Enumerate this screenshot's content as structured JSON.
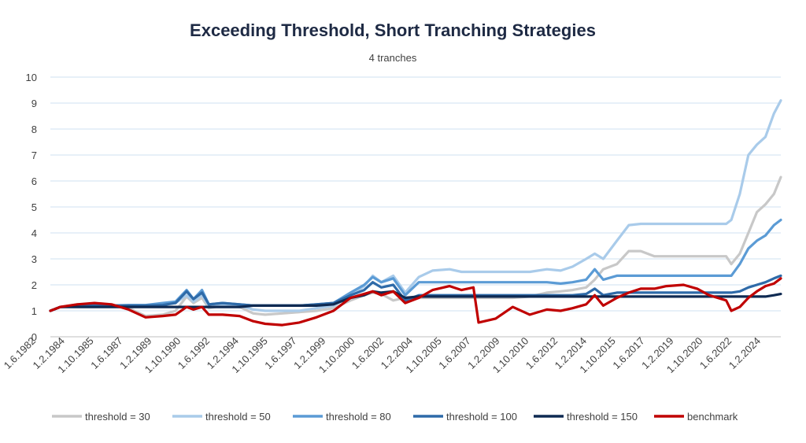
{
  "chart_data": {
    "type": "line",
    "title": "Exceeding Threshold, Short Tranching Strategies",
    "subtitle": "4 tranches",
    "xlabel": "",
    "ylabel": "",
    "ylim": [
      0,
      10
    ],
    "yticks": [
      "0",
      "1",
      "2",
      "3",
      "4",
      "5",
      "6",
      "7",
      "8",
      "9",
      "10"
    ],
    "grid": true,
    "legend_position": "bottom",
    "xtick_labels": [
      "1.6.1982",
      "1.2.1984",
      "1.10.1985",
      "1.6.1987",
      "1.2.1989",
      "1.10.1990",
      "1.6.1992",
      "1.2.1994",
      "1.10.1995",
      "1.6.1997",
      "1.2.1999",
      "1.10.2000",
      "1.6.2002",
      "1.2.2004",
      "1.10.2005",
      "1.6.2007",
      "1.2.2009",
      "1.10.2010",
      "1.6.2012",
      "1.2.2014",
      "1.10.2015",
      "1.6.2017",
      "1.2.2019",
      "1.10.2020",
      "1.6.2022",
      "1.2.2024"
    ],
    "x": [
      1982.42,
      1983.0,
      1984.0,
      1985.0,
      1986.0,
      1987.0,
      1988.0,
      1989.0,
      1989.75,
      1990.4,
      1990.8,
      1991.3,
      1991.7,
      1992.5,
      1993.5,
      1994.3,
      1995.0,
      1996.0,
      1997.0,
      1998.0,
      1999.0,
      2000.0,
      2000.8,
      2001.3,
      2001.8,
      2002.5,
      2003.2,
      2004.0,
      2004.8,
      2005.8,
      2006.5,
      2007.2,
      2007.5,
      2008.5,
      2009.5,
      2010.5,
      2011.5,
      2012.3,
      2013.0,
      2013.8,
      2014.3,
      2014.8,
      2015.6,
      2016.3,
      2017.0,
      2017.8,
      2018.5,
      2019.5,
      2020.3,
      2021.0,
      2022.0,
      2022.3,
      2022.8,
      2023.3,
      2023.8,
      2024.3,
      2024.8,
      2025.2
    ],
    "series": [
      {
        "name": "threshold = 30",
        "color": "#c8c8c8",
        "values": [
          1.0,
          1.15,
          1.25,
          1.22,
          1.18,
          1.1,
          0.8,
          0.85,
          1.0,
          1.55,
          1.3,
          1.5,
          1.1,
          1.2,
          1.15,
          0.9,
          0.85,
          0.9,
          0.95,
          1.0,
          1.1,
          1.4,
          1.6,
          1.7,
          1.65,
          1.4,
          1.5,
          1.5,
          1.5,
          1.5,
          1.5,
          1.5,
          1.5,
          1.5,
          1.5,
          1.55,
          1.7,
          1.75,
          1.8,
          1.9,
          2.2,
          2.6,
          2.8,
          3.3,
          3.3,
          3.1,
          3.1,
          3.1,
          3.1,
          3.1,
          3.1,
          2.8,
          3.2,
          4.0,
          4.8,
          5.1,
          5.5,
          6.15
        ]
      },
      {
        "name": "threshold = 50",
        "color": "#a9cbea",
        "values": [
          1.0,
          1.15,
          1.2,
          1.2,
          1.2,
          1.2,
          1.2,
          1.25,
          1.3,
          1.6,
          1.35,
          1.6,
          1.2,
          1.25,
          1.2,
          1.05,
          1.0,
          1.0,
          1.0,
          1.1,
          1.2,
          1.6,
          1.95,
          2.35,
          2.1,
          2.35,
          1.7,
          2.3,
          2.55,
          2.6,
          2.5,
          2.5,
          2.5,
          2.5,
          2.5,
          2.5,
          2.6,
          2.55,
          2.7,
          3.0,
          3.2,
          3.0,
          3.7,
          4.3,
          4.35,
          4.35,
          4.35,
          4.35,
          4.35,
          4.35,
          4.35,
          4.5,
          5.5,
          7.0,
          7.4,
          7.7,
          8.6,
          9.1
        ]
      },
      {
        "name": "threshold = 80",
        "color": "#5b9bd5",
        "values": [
          1.0,
          1.15,
          1.2,
          1.22,
          1.2,
          1.22,
          1.22,
          1.3,
          1.35,
          1.8,
          1.45,
          1.8,
          1.25,
          1.3,
          1.25,
          1.2,
          1.2,
          1.2,
          1.2,
          1.25,
          1.3,
          1.7,
          2.0,
          2.3,
          2.1,
          2.25,
          1.6,
          2.1,
          2.1,
          2.1,
          2.1,
          2.1,
          2.1,
          2.1,
          2.1,
          2.1,
          2.1,
          2.05,
          2.1,
          2.2,
          2.6,
          2.2,
          2.35,
          2.35,
          2.35,
          2.35,
          2.35,
          2.35,
          2.35,
          2.35,
          2.35,
          2.35,
          2.8,
          3.4,
          3.7,
          3.9,
          4.3,
          4.5
        ]
      },
      {
        "name": "threshold = 100",
        "color": "#2e6aa8",
        "values": [
          1.0,
          1.15,
          1.18,
          1.2,
          1.2,
          1.2,
          1.2,
          1.22,
          1.3,
          1.75,
          1.45,
          1.7,
          1.25,
          1.3,
          1.25,
          1.2,
          1.2,
          1.2,
          1.2,
          1.25,
          1.3,
          1.6,
          1.8,
          2.1,
          1.9,
          2.0,
          1.4,
          1.6,
          1.6,
          1.6,
          1.6,
          1.6,
          1.6,
          1.6,
          1.6,
          1.6,
          1.6,
          1.6,
          1.6,
          1.65,
          1.85,
          1.6,
          1.7,
          1.7,
          1.7,
          1.7,
          1.7,
          1.7,
          1.7,
          1.7,
          1.7,
          1.7,
          1.75,
          1.9,
          2.0,
          2.1,
          2.25,
          2.35
        ]
      },
      {
        "name": "threshold = 150",
        "color": "#0f2a52",
        "values": [
          1.0,
          1.15,
          1.15,
          1.15,
          1.15,
          1.15,
          1.15,
          1.15,
          1.15,
          1.15,
          1.15,
          1.15,
          1.15,
          1.15,
          1.15,
          1.2,
          1.2,
          1.2,
          1.2,
          1.2,
          1.25,
          1.5,
          1.6,
          1.75,
          1.7,
          1.75,
          1.5,
          1.55,
          1.55,
          1.55,
          1.55,
          1.55,
          1.55,
          1.55,
          1.55,
          1.55,
          1.55,
          1.55,
          1.55,
          1.55,
          1.55,
          1.55,
          1.55,
          1.55,
          1.55,
          1.55,
          1.55,
          1.55,
          1.55,
          1.55,
          1.55,
          1.55,
          1.55,
          1.55,
          1.55,
          1.55,
          1.6,
          1.65
        ]
      },
      {
        "name": "benchmark",
        "color": "#c00000",
        "values": [
          1.0,
          1.15,
          1.25,
          1.3,
          1.25,
          1.05,
          0.75,
          0.8,
          0.85,
          1.15,
          1.05,
          1.15,
          0.85,
          0.85,
          0.8,
          0.6,
          0.5,
          0.45,
          0.55,
          0.75,
          1.0,
          1.5,
          1.65,
          1.75,
          1.6,
          1.75,
          1.3,
          1.5,
          1.8,
          1.95,
          1.8,
          1.9,
          0.55,
          0.7,
          1.15,
          0.85,
          1.05,
          1.0,
          1.1,
          1.25,
          1.6,
          1.2,
          1.5,
          1.7,
          1.85,
          1.85,
          1.95,
          2.0,
          1.85,
          1.6,
          1.4,
          1.0,
          1.15,
          1.5,
          1.75,
          1.95,
          2.05,
          2.25
        ]
      }
    ]
  }
}
